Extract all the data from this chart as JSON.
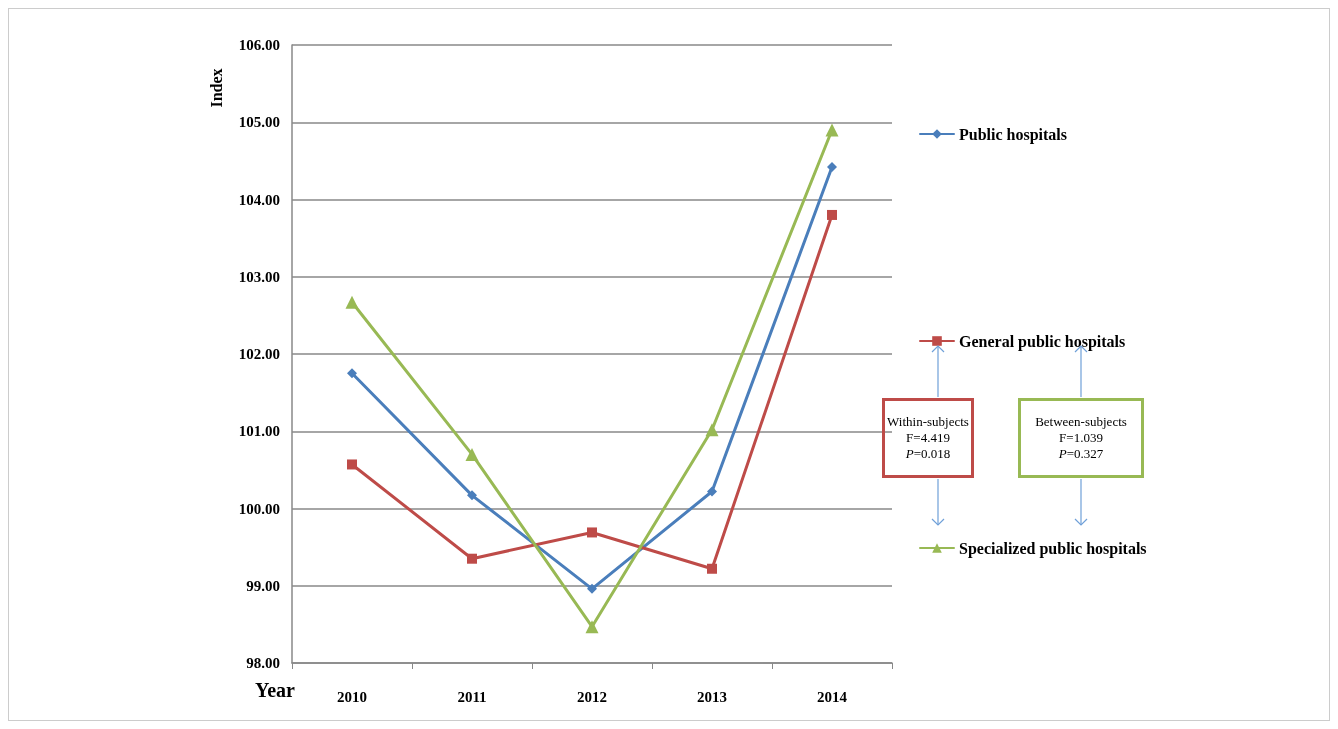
{
  "chart_data": {
    "type": "line",
    "xlabel": "Year",
    "ylabel": "Index",
    "categories": [
      "2010",
      "2011",
      "2012",
      "2013",
      "2014"
    ],
    "series": [
      {
        "name": "Public hospitals",
        "color": "#4a7ebb",
        "marker": "diamond",
        "values": [
          101.75,
          100.17,
          98.96,
          100.22,
          104.42
        ]
      },
      {
        "name": "General public hospitals",
        "color": "#be4b48",
        "marker": "square",
        "values": [
          100.57,
          99.35,
          99.69,
          99.22,
          103.8
        ]
      },
      {
        "name": "Specialized public hospitals",
        "color": "#98b954",
        "marker": "triangle",
        "values": [
          102.67,
          100.7,
          98.47,
          101.02,
          104.9
        ]
      }
    ],
    "ylim": [
      98,
      106
    ],
    "yticks": [
      {
        "value": 98,
        "label": "98.00"
      },
      {
        "value": 99,
        "label": "99.00"
      },
      {
        "value": 100,
        "label": "100.00"
      },
      {
        "value": 101,
        "label": "101.00"
      },
      {
        "value": 102,
        "label": "102.00"
      },
      {
        "value": 103,
        "label": "103.00"
      },
      {
        "value": 104,
        "label": "104.00"
      },
      {
        "value": 105,
        "label": "105.00"
      },
      {
        "value": 106,
        "label": "106.00"
      }
    ],
    "grid": "y",
    "legend": "right",
    "line_style": "solid",
    "annotations": [
      "Within-subjects\nF=4.419\nP=0.018",
      "Between-subjects\nF=1.039\nP=0.327"
    ]
  }
}
